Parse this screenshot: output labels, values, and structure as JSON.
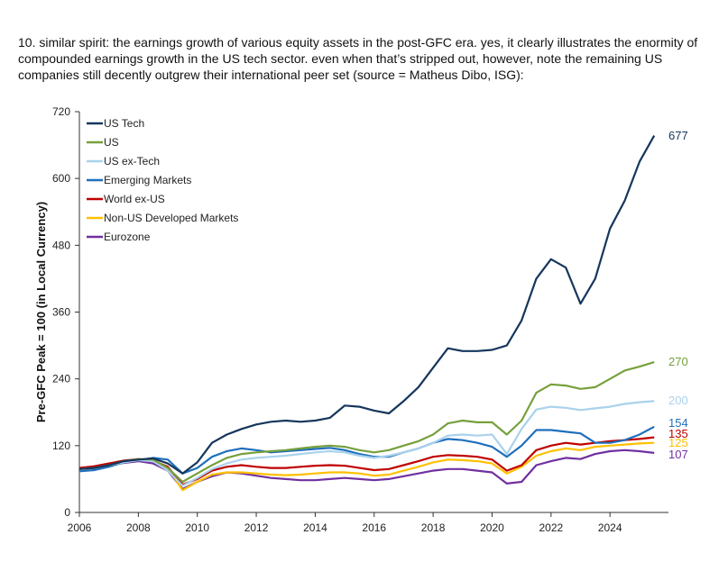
{
  "caption": "10. similar spirit: the earnings growth of various equity assets in the post-GFC era.  yes, it clearly illustrates the enormity of compounded earnings growth in the US tech sector.  even when that’s stripped out, however, note the remaining US companies still decently outgrew their international peer set (source = Matheus Dibo, ISG):",
  "chart_data": {
    "type": "line",
    "xlabel": "",
    "ylabel": "Pre-GFC Peak = 100 (in Local Currency)",
    "xlim": [
      2006,
      2025.8
    ],
    "ylim": [
      0,
      720
    ],
    "xticks": [
      "2006",
      "2008",
      "2010",
      "2012",
      "2014",
      "2016",
      "2018",
      "2020",
      "2022",
      "2024"
    ],
    "yticks": [
      "0",
      "120",
      "240",
      "360",
      "480",
      "600",
      "720"
    ],
    "grid": false,
    "legend_position": "top-left",
    "x": [
      2006.0,
      2006.5,
      2007.0,
      2007.5,
      2008.0,
      2008.5,
      2009.0,
      2009.5,
      2010.0,
      2010.5,
      2011.0,
      2011.5,
      2012.0,
      2012.5,
      2013.0,
      2013.5,
      2014.0,
      2014.5,
      2015.0,
      2015.5,
      2016.0,
      2016.5,
      2017.0,
      2017.5,
      2018.0,
      2018.5,
      2019.0,
      2019.5,
      2020.0,
      2020.5,
      2021.0,
      2021.5,
      2022.0,
      2022.5,
      2023.0,
      2023.5,
      2024.0,
      2024.5,
      2025.0,
      2025.5
    ],
    "series": [
      {
        "name": "US Tech",
        "color": "#16365c",
        "end_label": "677",
        "values": [
          78,
          80,
          85,
          92,
          95,
          97,
          88,
          70,
          90,
          125,
          140,
          150,
          158,
          163,
          165,
          163,
          165,
          170,
          192,
          190,
          183,
          178,
          200,
          225,
          260,
          295,
          290,
          290,
          292,
          300,
          345,
          420,
          455,
          440,
          375,
          420,
          510,
          560,
          630,
          677
        ]
      },
      {
        "name": "US",
        "color": "#76a03c",
        "end_label": "270",
        "values": [
          78,
          80,
          85,
          92,
          96,
          95,
          80,
          55,
          70,
          85,
          98,
          105,
          108,
          110,
          112,
          115,
          118,
          120,
          118,
          112,
          108,
          112,
          120,
          128,
          140,
          160,
          165,
          162,
          162,
          140,
          165,
          215,
          230,
          228,
          222,
          225,
          240,
          255,
          262,
          270
        ]
      },
      {
        "name": "US ex-Tech",
        "color": "#a9d2ec",
        "end_label": "200",
        "values": [
          78,
          80,
          85,
          90,
          94,
          92,
          75,
          48,
          62,
          78,
          88,
          95,
          98,
          100,
          102,
          105,
          108,
          110,
          108,
          102,
          98,
          102,
          108,
          115,
          125,
          138,
          140,
          138,
          140,
          105,
          150,
          185,
          190,
          188,
          184,
          187,
          190,
          195,
          198,
          200
        ]
      },
      {
        "name": "Emerging Markets",
        "color": "#1f6fbd",
        "end_label": "154",
        "values": [
          74,
          76,
          82,
          90,
          94,
          98,
          95,
          70,
          80,
          100,
          110,
          115,
          112,
          108,
          110,
          112,
          114,
          116,
          112,
          105,
          100,
          100,
          108,
          115,
          125,
          132,
          130,
          125,
          118,
          100,
          120,
          148,
          148,
          145,
          142,
          125,
          125,
          130,
          140,
          154
        ]
      },
      {
        "name": "World ex-US",
        "color": "#c00000",
        "end_label": "135",
        "values": [
          80,
          83,
          88,
          93,
          96,
          93,
          82,
          50,
          60,
          75,
          82,
          85,
          82,
          80,
          80,
          82,
          84,
          85,
          84,
          80,
          76,
          78,
          85,
          92,
          100,
          103,
          102,
          100,
          95,
          75,
          85,
          112,
          120,
          125,
          122,
          125,
          128,
          130,
          132,
          135
        ]
      },
      {
        "name": "Non-US Developed Markets",
        "color": "#ffc000",
        "end_label": "125",
        "values": [
          79,
          82,
          87,
          92,
          95,
          92,
          80,
          40,
          55,
          68,
          72,
          72,
          70,
          68,
          67,
          68,
          70,
          72,
          72,
          70,
          66,
          68,
          75,
          82,
          90,
          95,
          94,
          92,
          88,
          70,
          82,
          102,
          110,
          115,
          112,
          118,
          120,
          122,
          124,
          125
        ]
      },
      {
        "name": "Eurozone",
        "color": "#7030a0",
        "end_label": "107",
        "values": [
          80,
          82,
          85,
          89,
          92,
          88,
          75,
          42,
          55,
          65,
          72,
          70,
          66,
          62,
          60,
          58,
          58,
          60,
          62,
          60,
          58,
          60,
          65,
          70,
          75,
          78,
          78,
          75,
          72,
          52,
          55,
          85,
          92,
          98,
          96,
          105,
          110,
          112,
          110,
          107
        ]
      }
    ]
  }
}
